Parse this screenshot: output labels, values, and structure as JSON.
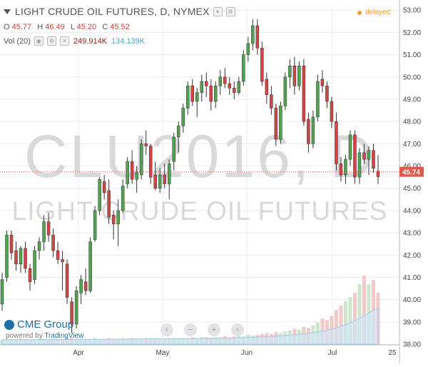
{
  "header": {
    "title": "LIGHT CRUDE OIL FUTURES, D, NYMEX",
    "ohlc": [
      {
        "label": "O",
        "value": "45.77"
      },
      {
        "label": "H",
        "value": "46.49"
      },
      {
        "label": "L",
        "value": "45.20"
      },
      {
        "label": "C",
        "value": "45.52"
      }
    ],
    "volume": {
      "label": "Vol (20)",
      "value1": "249.914K",
      "value2": "134.139K"
    },
    "delayed": "delayed"
  },
  "watermark": {
    "symbol": "CLU2016, D",
    "name": "LIGHT CRUDE OIL FUTURES"
  },
  "branding": {
    "logo": "CME Group",
    "powered_by": "powered by",
    "tradingview": "TradingView"
  },
  "navigation": [
    "‹",
    "−",
    "+",
    "›"
  ],
  "colors": {
    "up": "#51a351",
    "down": "#d04545",
    "price_line": "#e4584c",
    "volume_up": "#cde6cd",
    "volume_down": "#f2c9c9"
  },
  "chart_data": {
    "type": "candlestick",
    "y_axis": {
      "labels": [
        "53.00",
        "52.00",
        "51.00",
        "50.00",
        "49.00",
        "48.00",
        "47.00",
        "46.00",
        "45.00",
        "44.00",
        "43.00",
        "42.00",
        "41.00",
        "40.00",
        "39.00",
        "38.00"
      ],
      "ylim": [
        38,
        53.2
      ]
    },
    "x_axis": {
      "labels": [
        "Apr",
        "May",
        "Jun",
        "Jul",
        "25"
      ]
    },
    "last_price": "45.74",
    "candles": [
      {
        "o": 39.8,
        "h": 41.2,
        "l": 39.5,
        "c": 40.9
      },
      {
        "o": 41.0,
        "h": 43.1,
        "l": 40.8,
        "c": 42.9
      },
      {
        "o": 42.9,
        "h": 43.1,
        "l": 41.8,
        "c": 42.1
      },
      {
        "o": 42.2,
        "h": 42.6,
        "l": 41.3,
        "c": 41.6
      },
      {
        "o": 41.6,
        "h": 42.4,
        "l": 41.2,
        "c": 42.3
      },
      {
        "o": 42.3,
        "h": 42.6,
        "l": 41.2,
        "c": 41.4
      },
      {
        "o": 41.4,
        "h": 41.6,
        "l": 40.4,
        "c": 40.8
      },
      {
        "o": 40.9,
        "h": 42.4,
        "l": 40.7,
        "c": 42.2
      },
      {
        "o": 42.2,
        "h": 42.8,
        "l": 41.8,
        "c": 42.6
      },
      {
        "o": 42.6,
        "h": 43.8,
        "l": 42.2,
        "c": 43.5
      },
      {
        "o": 43.5,
        "h": 43.9,
        "l": 42.6,
        "c": 42.9
      },
      {
        "o": 42.9,
        "h": 43.2,
        "l": 41.9,
        "c": 42.2
      },
      {
        "o": 42.2,
        "h": 42.6,
        "l": 41.6,
        "c": 41.8
      },
      {
        "o": 41.8,
        "h": 42.2,
        "l": 40.4,
        "c": 41.7
      },
      {
        "o": 41.6,
        "h": 41.8,
        "l": 39.8,
        "c": 40.1
      },
      {
        "o": 39.9,
        "h": 40.1,
        "l": 38.5,
        "c": 38.9
      },
      {
        "o": 38.9,
        "h": 40.6,
        "l": 38.7,
        "c": 40.4
      },
      {
        "o": 40.3,
        "h": 41.1,
        "l": 39.8,
        "c": 40.9
      },
      {
        "o": 40.8,
        "h": 41.4,
        "l": 40.2,
        "c": 40.4
      },
      {
        "o": 40.4,
        "h": 42.8,
        "l": 40.3,
        "c": 42.6
      },
      {
        "o": 42.7,
        "h": 44.2,
        "l": 42.6,
        "c": 44.0
      },
      {
        "o": 44.0,
        "h": 45.5,
        "l": 43.8,
        "c": 45.4
      },
      {
        "o": 45.3,
        "h": 45.6,
        "l": 44.5,
        "c": 44.8
      },
      {
        "o": 44.9,
        "h": 45.4,
        "l": 43.4,
        "c": 43.7
      },
      {
        "o": 43.8,
        "h": 44.0,
        "l": 42.7,
        "c": 43.4
      },
      {
        "o": 43.4,
        "h": 44.5,
        "l": 42.4,
        "c": 44.0
      },
      {
        "o": 44.0,
        "h": 45.4,
        "l": 43.9,
        "c": 45.1
      },
      {
        "o": 45.2,
        "h": 46.4,
        "l": 45.0,
        "c": 46.2
      },
      {
        "o": 46.2,
        "h": 46.7,
        "l": 45.2,
        "c": 45.4
      },
      {
        "o": 45.4,
        "h": 46.0,
        "l": 44.8,
        "c": 45.7
      },
      {
        "o": 45.6,
        "h": 47.2,
        "l": 45.4,
        "c": 47.0
      },
      {
        "o": 47.0,
        "h": 47.6,
        "l": 46.5,
        "c": 46.9
      },
      {
        "o": 46.9,
        "h": 47.0,
        "l": 45.2,
        "c": 45.5
      },
      {
        "o": 45.6,
        "h": 46.2,
        "l": 44.9,
        "c": 45.0
      },
      {
        "o": 45.0,
        "h": 45.9,
        "l": 44.8,
        "c": 45.6
      },
      {
        "o": 45.6,
        "h": 46.1,
        "l": 45.0,
        "c": 45.2
      },
      {
        "o": 45.2,
        "h": 46.3,
        "l": 44.5,
        "c": 46.1
      },
      {
        "o": 46.2,
        "h": 47.5,
        "l": 45.8,
        "c": 47.3
      },
      {
        "o": 47.3,
        "h": 48.0,
        "l": 46.6,
        "c": 47.8
      },
      {
        "o": 47.8,
        "h": 48.8,
        "l": 47.5,
        "c": 48.6
      },
      {
        "o": 48.6,
        "h": 49.8,
        "l": 48.3,
        "c": 49.6
      },
      {
        "o": 49.6,
        "h": 49.9,
        "l": 48.7,
        "c": 48.9
      },
      {
        "o": 48.9,
        "h": 49.5,
        "l": 48.2,
        "c": 49.3
      },
      {
        "o": 49.3,
        "h": 50.1,
        "l": 48.9,
        "c": 49.8
      },
      {
        "o": 49.8,
        "h": 50.2,
        "l": 49.1,
        "c": 49.6
      },
      {
        "o": 49.6,
        "h": 49.9,
        "l": 48.5,
        "c": 48.9
      },
      {
        "o": 48.9,
        "h": 49.8,
        "l": 48.6,
        "c": 49.6
      },
      {
        "o": 49.6,
        "h": 50.3,
        "l": 49.2,
        "c": 50.0
      },
      {
        "o": 50.0,
        "h": 50.4,
        "l": 49.5,
        "c": 49.7
      },
      {
        "o": 49.7,
        "h": 50.0,
        "l": 49.2,
        "c": 49.5
      },
      {
        "o": 49.5,
        "h": 49.8,
        "l": 49.0,
        "c": 49.3
      },
      {
        "o": 49.3,
        "h": 50.0,
        "l": 49.2,
        "c": 49.8
      },
      {
        "o": 49.8,
        "h": 51.2,
        "l": 49.6,
        "c": 51.0
      },
      {
        "o": 51.0,
        "h": 51.8,
        "l": 50.7,
        "c": 51.5
      },
      {
        "o": 51.5,
        "h": 52.6,
        "l": 51.2,
        "c": 52.3
      },
      {
        "o": 52.3,
        "h": 52.6,
        "l": 51.0,
        "c": 51.3
      },
      {
        "o": 51.3,
        "h": 51.6,
        "l": 49.6,
        "c": 49.8
      },
      {
        "o": 49.9,
        "h": 50.2,
        "l": 48.8,
        "c": 49.2
      },
      {
        "o": 49.2,
        "h": 49.6,
        "l": 48.3,
        "c": 48.6
      },
      {
        "o": 48.6,
        "h": 48.8,
        "l": 46.9,
        "c": 47.2
      },
      {
        "o": 47.2,
        "h": 48.9,
        "l": 47.0,
        "c": 48.7
      },
      {
        "o": 48.7,
        "h": 50.2,
        "l": 48.5,
        "c": 50.0
      },
      {
        "o": 50.0,
        "h": 50.8,
        "l": 49.5,
        "c": 50.5
      },
      {
        "o": 50.5,
        "h": 50.9,
        "l": 49.2,
        "c": 49.6
      },
      {
        "o": 49.6,
        "h": 50.7,
        "l": 49.4,
        "c": 50.5
      },
      {
        "o": 50.5,
        "h": 50.8,
        "l": 47.8,
        "c": 48.0
      },
      {
        "o": 48.1,
        "h": 48.4,
        "l": 46.6,
        "c": 47.0
      },
      {
        "o": 47.0,
        "h": 48.5,
        "l": 46.8,
        "c": 48.2
      },
      {
        "o": 48.2,
        "h": 50.1,
        "l": 48.0,
        "c": 49.8
      },
      {
        "o": 49.9,
        "h": 50.3,
        "l": 49.3,
        "c": 49.6
      },
      {
        "o": 49.6,
        "h": 49.8,
        "l": 48.6,
        "c": 48.9
      },
      {
        "o": 48.9,
        "h": 49.1,
        "l": 47.7,
        "c": 48.0
      },
      {
        "o": 48.0,
        "h": 48.4,
        "l": 45.8,
        "c": 46.1
      },
      {
        "o": 46.1,
        "h": 46.4,
        "l": 45.3,
        "c": 45.6
      },
      {
        "o": 45.6,
        "h": 46.5,
        "l": 45.2,
        "c": 46.3
      },
      {
        "o": 46.3,
        "h": 47.6,
        "l": 46.0,
        "c": 47.4
      },
      {
        "o": 47.4,
        "h": 47.6,
        "l": 45.2,
        "c": 45.5
      },
      {
        "o": 45.5,
        "h": 46.8,
        "l": 45.2,
        "c": 46.6
      },
      {
        "o": 46.6,
        "h": 47.0,
        "l": 46.1,
        "c": 46.3
      },
      {
        "o": 46.3,
        "h": 46.9,
        "l": 45.6,
        "c": 46.7
      },
      {
        "o": 46.7,
        "h": 47.0,
        "l": 45.7,
        "c": 45.9
      },
      {
        "o": 45.77,
        "h": 46.49,
        "l": 45.2,
        "c": 45.52
      }
    ],
    "volume_relative": [
      0.05,
      0.06,
      0.05,
      0.05,
      0.06,
      0.05,
      0.05,
      0.06,
      0.05,
      0.06,
      0.05,
      0.05,
      0.06,
      0.05,
      0.06,
      0.07,
      0.06,
      0.06,
      0.05,
      0.06,
      0.07,
      0.06,
      0.06,
      0.07,
      0.06,
      0.06,
      0.07,
      0.06,
      0.07,
      0.06,
      0.06,
      0.07,
      0.07,
      0.06,
      0.07,
      0.06,
      0.07,
      0.07,
      0.06,
      0.07,
      0.07,
      0.08,
      0.07,
      0.08,
      0.08,
      0.07,
      0.08,
      0.08,
      0.09,
      0.08,
      0.09,
      0.1,
      0.09,
      0.11,
      0.1,
      0.11,
      0.12,
      0.13,
      0.12,
      0.14,
      0.13,
      0.15,
      0.16,
      0.18,
      0.17,
      0.2,
      0.19,
      0.22,
      0.25,
      0.3,
      0.28,
      0.33,
      0.4,
      0.45,
      0.5,
      0.55,
      0.6,
      0.7,
      0.8,
      0.7,
      0.75,
      0.6
    ]
  }
}
